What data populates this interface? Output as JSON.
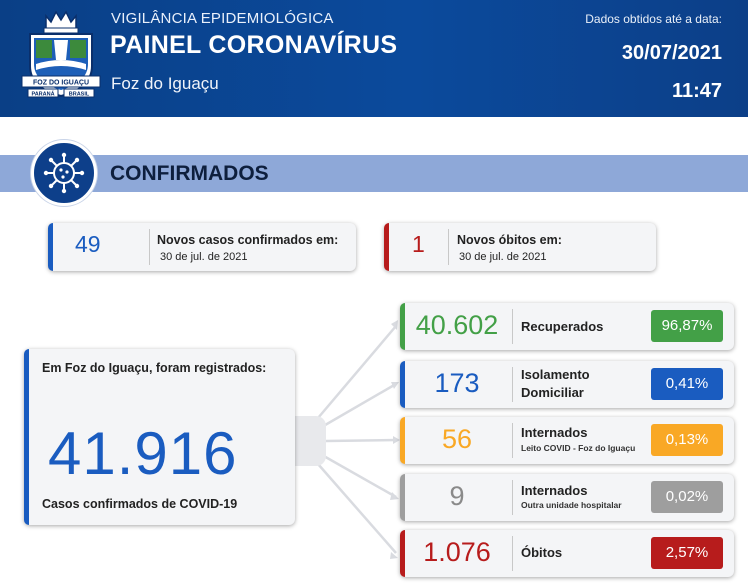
{
  "colors": {
    "header_bg": "#0b4a9c",
    "banner_bg": "#8ea8d8",
    "blue": "#1a5cc0",
    "red": "#b71c1c",
    "green": "#43a047",
    "orange": "#f9a825",
    "gray": "#9e9e9e"
  },
  "header": {
    "crest_text_top": "FOZ DO IGUAÇU",
    "crest_text_left": "PARANÁ",
    "crest_text_right": "BRASIL",
    "supertitle": "VIGILÂNCIA EPIDEMIOLÓGICA",
    "title": "PAINEL CORONAVÍRUS",
    "city": "Foz do Iguaçu",
    "data_note": "Dados obtidos até a data:",
    "date": "30/07/2021",
    "time": "11:47"
  },
  "section": {
    "icon": "virus-icon",
    "title": "CONFIRMADOS"
  },
  "new_cases": {
    "value": "49",
    "label": "Novos casos confirmados em:",
    "date": "30 de jul. de 2021"
  },
  "new_deaths": {
    "value": "1",
    "label": "Novos óbitos em:",
    "date": "30 de jul. de 2021"
  },
  "total": {
    "title": "Em Foz do Iguaçu, foram registrados:",
    "value": "41.916",
    "subtitle": "Casos confirmados de COVID-19"
  },
  "breakdown": [
    {
      "value": "40.602",
      "label": "Recuperados",
      "sublabel": "",
      "percent": "96,87%",
      "color": "#43a047"
    },
    {
      "value": "173",
      "label": "Isolamento",
      "label2": "Domiciliar",
      "sublabel": "",
      "percent": "0,41%",
      "color": "#1a5cc0"
    },
    {
      "value": "56",
      "label": "Internados",
      "sublabel": "Leito COVID - Foz do Iguaçu",
      "percent": "0,13%",
      "color": "#f9a825"
    },
    {
      "value": "9",
      "label": "Internados",
      "sublabel": "Outra unidade hospitalar",
      "percent": "0,02%",
      "color": "#9e9e9e"
    },
    {
      "value": "1.076",
      "label": "Óbitos",
      "sublabel": "",
      "percent": "2,57%",
      "color": "#b71c1c"
    }
  ]
}
